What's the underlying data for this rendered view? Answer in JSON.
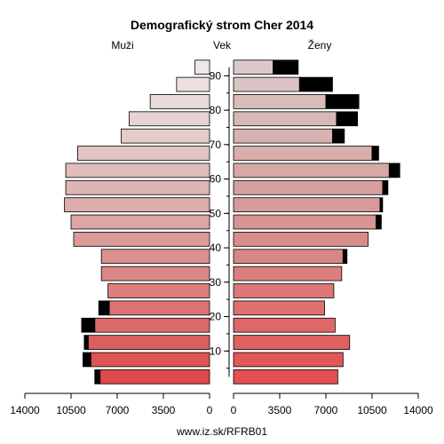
{
  "chart_data": {
    "type": "bar",
    "orientation": "horizontal-pyramid",
    "title": "Demografický strom Cher 2014",
    "left_label": "Muži",
    "center_label": "Vek",
    "right_label": "Ženy",
    "footer": "www.iz.sk/RFRB01",
    "xlim": [
      0,
      14000
    ],
    "x_ticks_left": [
      "14000",
      "10500",
      "7000",
      "3500",
      "0"
    ],
    "x_ticks_right": [
      "0",
      "3500",
      "7000",
      "10500",
      "14000"
    ],
    "age_tick_labels": [
      "10",
      "20",
      "30",
      "40",
      "50",
      "60",
      "70",
      "80",
      "90"
    ],
    "age_groups": [
      "0-4",
      "5-9",
      "10-14",
      "15-19",
      "20-24",
      "25-29",
      "30-34",
      "35-39",
      "40-44",
      "45-49",
      "50-54",
      "55-59",
      "60-64",
      "65-69",
      "70-74",
      "75-79",
      "80-84",
      "85-89",
      "90+"
    ],
    "series": [
      {
        "name": "Muži",
        "values": [
          8300,
          9000,
          9200,
          8700,
          7600,
          7700,
          8200,
          8200,
          10300,
          10500,
          11000,
          10900,
          10900,
          10000,
          6700,
          6100,
          4500,
          2500,
          1100
        ],
        "excess": [
          400,
          600,
          300,
          1000,
          800,
          0,
          0,
          0,
          0,
          0,
          0,
          0,
          0,
          0,
          0,
          0,
          0,
          0,
          0
        ]
      },
      {
        "name": "Ženy",
        "values": [
          7900,
          8300,
          8800,
          7700,
          6900,
          7600,
          8200,
          8300,
          10200,
          10800,
          11100,
          11300,
          11800,
          10500,
          7500,
          7800,
          7000,
          5000,
          3000
        ],
        "excess": [
          0,
          0,
          0,
          0,
          0,
          0,
          0,
          300,
          0,
          400,
          200,
          400,
          800,
          500,
          900,
          1600,
          2500,
          2500,
          1900
        ]
      }
    ]
  }
}
